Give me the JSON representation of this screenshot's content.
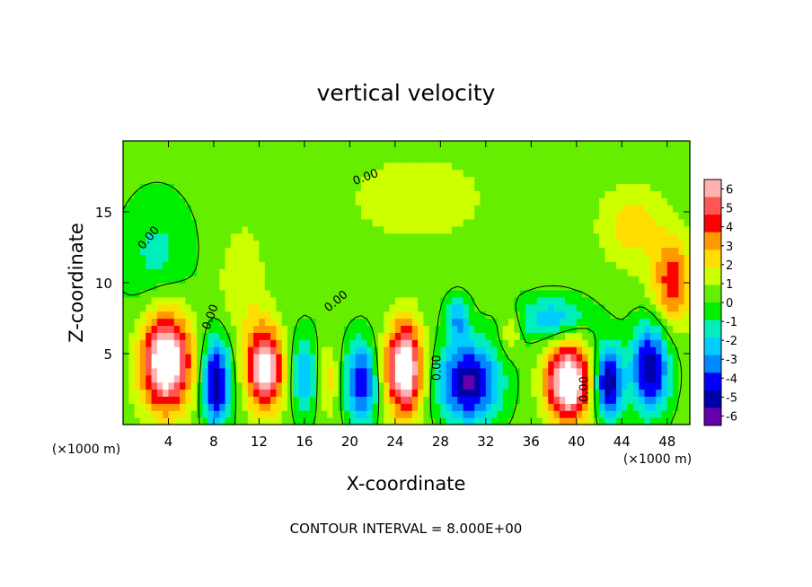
{
  "chart_data": {
    "type": "heatmap",
    "title": "vertical velocity",
    "xlabel": "X-coordinate",
    "ylabel": "Z-coordinate",
    "x_unit_left": "(×1000 m)",
    "x_unit_right": "(×1000 m)",
    "xlim": [
      0,
      50
    ],
    "ylim": [
      0,
      20
    ],
    "x_ticks": [
      4,
      8,
      12,
      16,
      20,
      24,
      28,
      32,
      36,
      40,
      44,
      48
    ],
    "y_ticks": [
      5,
      10,
      15
    ],
    "colorbar": {
      "ticks": [
        6,
        5,
        4,
        3,
        2,
        1,
        0,
        -1,
        -2,
        -3,
        -4,
        -5,
        -6
      ],
      "colors": [
        "#ffb0b0",
        "#ff5555",
        "#ff0000",
        "#ff9900",
        "#ffdd00",
        "#ccff00",
        "#66ee00",
        "#00ee00",
        "#00eebb",
        "#00ccff",
        "#0088ff",
        "#0000ff",
        "#0000aa",
        "#6600aa"
      ]
    },
    "contour_label": "0.00",
    "contour_interval_text": "CONTOUR INTERVAL = 8.000E+00",
    "features": [
      {
        "x": 3.8,
        "z": 4.5,
        "value": 8,
        "sx": 2.2,
        "sz": 3.5
      },
      {
        "x": 8.2,
        "z": 3.0,
        "value": -6,
        "sx": 1.2,
        "sz": 3.0
      },
      {
        "x": 12.5,
        "z": 4.0,
        "value": 7,
        "sx": 1.6,
        "sz": 3.0
      },
      {
        "x": 16.0,
        "z": 3.5,
        "value": -3,
        "sx": 1.2,
        "sz": 2.8
      },
      {
        "x": 18.0,
        "z": 3.2,
        "value": 2,
        "sx": 1.0,
        "sz": 2.5
      },
      {
        "x": 21.0,
        "z": 3.0,
        "value": -5,
        "sx": 1.3,
        "sz": 2.8
      },
      {
        "x": 24.8,
        "z": 4.0,
        "value": 8,
        "sx": 1.6,
        "sz": 3.2
      },
      {
        "x": 30.5,
        "z": 3.0,
        "value": -6,
        "sx": 2.6,
        "sz": 2.8
      },
      {
        "x": 29.5,
        "z": 7.5,
        "value": -3,
        "sx": 1.0,
        "sz": 1.5
      },
      {
        "x": 34.2,
        "z": 6.5,
        "value": 2,
        "sx": 0.8,
        "sz": 1.5
      },
      {
        "x": 39.3,
        "z": 3.0,
        "value": 8,
        "sx": 2.0,
        "sz": 2.8
      },
      {
        "x": 42.8,
        "z": 3.0,
        "value": -6,
        "sx": 1.3,
        "sz": 2.5
      },
      {
        "x": 46.5,
        "z": 4.0,
        "value": -6,
        "sx": 1.6,
        "sz": 3.0
      },
      {
        "x": 48.5,
        "z": 10.0,
        "value": 4,
        "sx": 1.8,
        "sz": 3.0
      },
      {
        "x": 45.0,
        "z": 14.0,
        "value": 2,
        "sx": 3.0,
        "sz": 3.0
      },
      {
        "x": 3.0,
        "z": 12.0,
        "value": -1.5,
        "sx": 3.0,
        "sz": 4.0
      },
      {
        "x": 10.5,
        "z": 10.0,
        "value": 1.5,
        "sx": 2.0,
        "sz": 4.0
      },
      {
        "x": 38.0,
        "z": 7.5,
        "value": -3,
        "sx": 3.0,
        "sz": 1.5
      },
      {
        "x": 26.0,
        "z": 16.0,
        "value": 1,
        "sx": 8.0,
        "sz": 4.0
      }
    ]
  }
}
